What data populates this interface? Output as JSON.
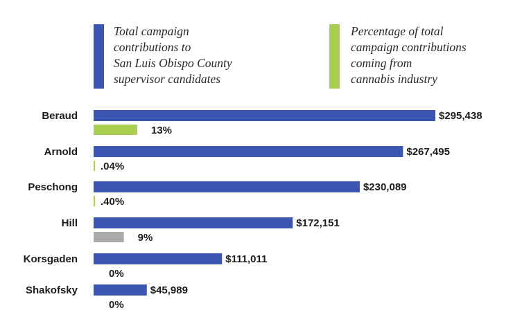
{
  "chart_data": {
    "type": "bar",
    "orientation": "horizontal",
    "title": "",
    "xlabel": "",
    "ylabel": "",
    "grid": false,
    "categories": [
      "Beraud",
      "Arnold",
      "Peschong",
      "Hill",
      "Korsgaden",
      "Shakofsky"
    ],
    "series": [
      {
        "name": "Total campaign contributions to San Luis Obispo County supervisor candidates",
        "values": [
          295438,
          267495,
          230089,
          172151,
          111011,
          45989
        ],
        "labels": [
          "$295,438",
          "$267,495",
          "$230,089",
          "$172,151",
          "$111,011",
          "$45,989"
        ],
        "color": "#3a56b0"
      },
      {
        "name": "Percentage of total campaign contributions coming from cannabis industry",
        "values": [
          13,
          0.04,
          0.4,
          9,
          0,
          0
        ],
        "labels": [
          "13%",
          ".04%",
          ".40%",
          "9%",
          "0%",
          "0%"
        ],
        "colors": [
          "#a8cf50",
          "#a8cf50",
          "#a8cf50",
          "#aaaaaa",
          "#a8cf50",
          "#a8cf50"
        ],
        "color": "#a8cf50"
      }
    ],
    "legend": [
      {
        "color": "#3a56b0",
        "lines": [
          "Total campaign",
          "contributions to",
          "San Luis Obispo County",
          "supervisor candidates"
        ]
      },
      {
        "color": "#a8cf50",
        "lines": [
          "Percentage of total",
          "campaign contributions",
          "coming from",
          "cannabis industry"
        ]
      }
    ]
  }
}
